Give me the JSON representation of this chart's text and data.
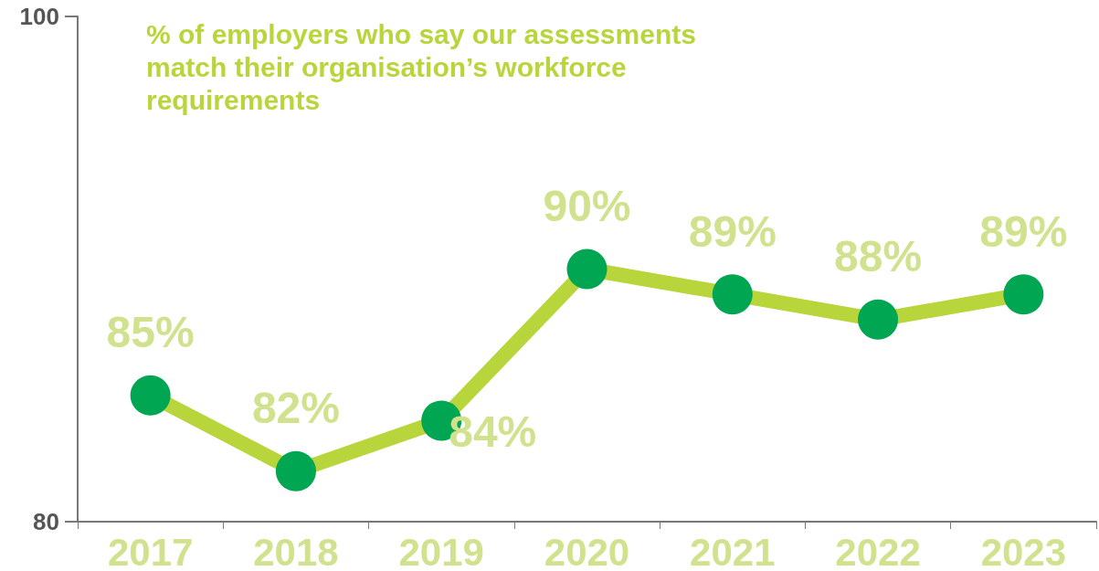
{
  "chart_data": {
    "type": "line",
    "title": "% of employers who say our assessments match their organisation’s workforce requirements",
    "categories": [
      "2017",
      "2018",
      "2019",
      "2020",
      "2021",
      "2022",
      "2023"
    ],
    "series": [
      {
        "color": "#b8d63c",
        "values": [
          85,
          82,
          84,
          90,
          89,
          88,
          89
        ],
        "value_labels": [
          "85%",
          "82%",
          "84%",
          "90%",
          "89%",
          "88%",
          "89%"
        ]
      }
    ],
    "ylim": [
      80,
      100
    ],
    "yticks": [
      80,
      100
    ],
    "grid": false,
    "marker": "circle",
    "line_style": "solid"
  }
}
